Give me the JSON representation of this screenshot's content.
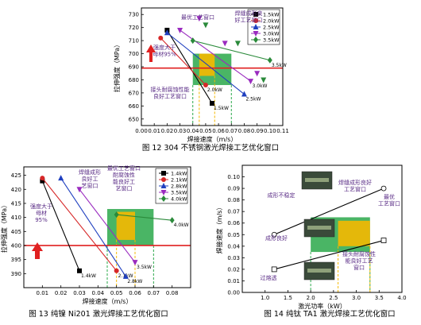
{
  "captions": {
    "fig12": "图 12 304 不锈钢激光焊接工艺优化窗口",
    "fig13": "图 13 纯镍 Ni201 激光焊接工艺优化窗口",
    "fig14": "图 14 纯钛 TA1 激光焊接工艺优化窗口"
  },
  "chart_data": [
    {
      "id": "fig12",
      "type": "line",
      "xlabel": "焊接速度（m/s）",
      "ylabel": "拉伸强度（MPa）",
      "xlim": [
        0.0,
        0.11
      ],
      "ylim": [
        645,
        735
      ],
      "xticks": [
        "0.00",
        "0.01",
        "0.02",
        "0.03",
        "0.04",
        "0.05",
        "0.06",
        "0.07",
        "0.08",
        "0.09",
        "0.10",
        "0.11"
      ],
      "yticks": [
        "650",
        "660",
        "670",
        "680",
        "690",
        "700",
        "710",
        "720",
        "730"
      ],
      "legend_position": "top-right",
      "series": [
        {
          "name": "1.5kW",
          "color": "#000000",
          "marker": "square",
          "x": [
            0.02,
            0.055
          ],
          "y": [
            718,
            662
          ],
          "end_label": "1.5kW"
        },
        {
          "name": "2.0kW",
          "color": "#d62728",
          "marker": "circle",
          "x": [
            0.015,
            0.05
          ],
          "y": [
            712,
            676
          ],
          "end_label": "2.0kW"
        },
        {
          "name": "2.5kW",
          "color": "#1f3fbf",
          "marker": "triangle",
          "x": [
            0.02,
            0.08
          ],
          "y": [
            716,
            669
          ],
          "end_label": "2.5kW"
        },
        {
          "name": "3.0kW",
          "color": "#9a2bbf",
          "marker": "triangle-down",
          "x": [
            0.03,
            0.085
          ],
          "y": [
            718,
            679
          ],
          "end_label": "3.0kW"
        },
        {
          "name": "3.5kW",
          "color": "#2a8a3a",
          "marker": "diamond",
          "x": [
            0.04,
            0.1
          ],
          "y": [
            710,
            695
          ],
          "end_label": "3.5kW"
        }
      ],
      "extra_points": [
        {
          "x": 0.045,
          "y": 727,
          "color": "#9a2bbf"
        },
        {
          "x": 0.05,
          "y": 722,
          "color": "#2a8a3a"
        },
        {
          "x": 0.065,
          "y": 708,
          "color": "#9a2bbf"
        },
        {
          "x": 0.075,
          "y": 708,
          "color": "#2a8a3a"
        },
        {
          "x": 0.09,
          "y": 685,
          "color": "#9a2bbf"
        },
        {
          "x": 0.095,
          "y": 680,
          "color": "#2a8a3a"
        }
      ],
      "threshold_y": 689,
      "windows": [
        {
          "label": "grain",
          "x": [
            0.04,
            0.07
          ],
          "y": [
            676,
            700
          ],
          "color": "#2aa84a"
        },
        {
          "label": "gold",
          "x": [
            0.045,
            0.057
          ],
          "y": [
            683,
            700
          ],
          "color": "#f5b800"
        }
      ],
      "annotations": [
        "最优工艺窗口",
        "焊缝成形良好工艺窗口",
        "强度大于母材95%",
        "接头耐腐蚀性能良好工艺窗口"
      ]
    },
    {
      "id": "fig13",
      "type": "line",
      "xlabel": "焊接速度（m/s）",
      "ylabel": "拉伸强度（MPa）",
      "xlim": [
        0.0,
        0.09
      ],
      "ylim": [
        385,
        428
      ],
      "xticks": [
        "0.01",
        "0.02",
        "0.03",
        "0.04",
        "0.05",
        "0.06",
        "0.07",
        "0.08"
      ],
      "yticks": [
        "390",
        "395",
        "400",
        "405",
        "410",
        "415",
        "420",
        "425"
      ],
      "legend_position": "top-right",
      "series": [
        {
          "name": "1.4kW",
          "color": "#000000",
          "marker": "square",
          "x": [
            0.01,
            0.03
          ],
          "y": [
            423,
            391
          ],
          "end_label": "1.4kW"
        },
        {
          "name": "2.1kW",
          "color": "#d62728",
          "marker": "circle",
          "x": [
            0.01,
            0.05
          ],
          "y": [
            424,
            391
          ],
          "end_label": "2.1kW"
        },
        {
          "name": "2.8kW",
          "color": "#1f3fbf",
          "marker": "triangle",
          "x": [
            0.02,
            0.055
          ],
          "y": [
            424,
            389
          ],
          "end_label": "2.8kW"
        },
        {
          "name": "3.5kW",
          "color": "#9a2bbf",
          "marker": "triangle-down",
          "x": [
            0.03,
            0.06
          ],
          "y": [
            420,
            394
          ],
          "end_label": "3.5kW"
        },
        {
          "name": "4.0kW",
          "color": "#2a8a3a",
          "marker": "diamond",
          "x": [
            0.05,
            0.08
          ],
          "y": [
            411,
            409
          ],
          "end_label": "4.0kW"
        }
      ],
      "threshold_y": 400,
      "windows": [
        {
          "label": "grain",
          "x": [
            0.045,
            0.07
          ],
          "y": [
            400,
            413
          ],
          "color": "#2aa84a"
        },
        {
          "label": "gold",
          "x": [
            0.05,
            0.06
          ],
          "y": [
            402,
            412
          ],
          "color": "#f5b800"
        }
      ],
      "annotations": [
        "焊缝成形良好工艺窗口",
        "最优工艺窗口/耐腐蚀性能良好工艺窗口",
        "强度大于母材95%"
      ]
    },
    {
      "id": "fig14",
      "type": "line",
      "xlabel": "激光功率（kW）",
      "ylabel": "焊接速度（m/s）",
      "xlim": [
        0.5,
        4.0
      ],
      "ylim": [
        0.0,
        0.11
      ],
      "xticks": [
        "1.0",
        "1.5",
        "2.0",
        "2.5",
        "3.0",
        "3.5",
        "4.0"
      ],
      "yticks": [
        "0.00",
        "0.01",
        "0.02",
        "0.03",
        "0.04",
        "0.05",
        "0.06",
        "0.07",
        "0.08",
        "0.09",
        "0.10"
      ],
      "series": [
        {
          "name": "upper",
          "color": "#000000",
          "marker": "circle-open",
          "x": [
            1.2,
            3.6
          ],
          "y": [
            0.05,
            0.09
          ]
        },
        {
          "name": "lower",
          "color": "#000000",
          "marker": "square-open",
          "x": [
            1.2,
            3.6
          ],
          "y": [
            0.02,
            0.045
          ]
        }
      ],
      "windows": [
        {
          "label": "grain",
          "x": [
            2.0,
            3.3
          ],
          "y": [
            0.035,
            0.065
          ],
          "color": "#2aa84a"
        },
        {
          "label": "gold",
          "x": [
            2.6,
            3.3
          ],
          "y": [
            0.04,
            0.062
          ],
          "color": "#f5b800"
        }
      ],
      "annotations": [
        "成形不稳定",
        "成形良好",
        "过熔透",
        "焊缝成形良好工艺窗口",
        "最优工艺窗口",
        "接头耐腐蚀性能良好工艺窗口"
      ]
    }
  ]
}
